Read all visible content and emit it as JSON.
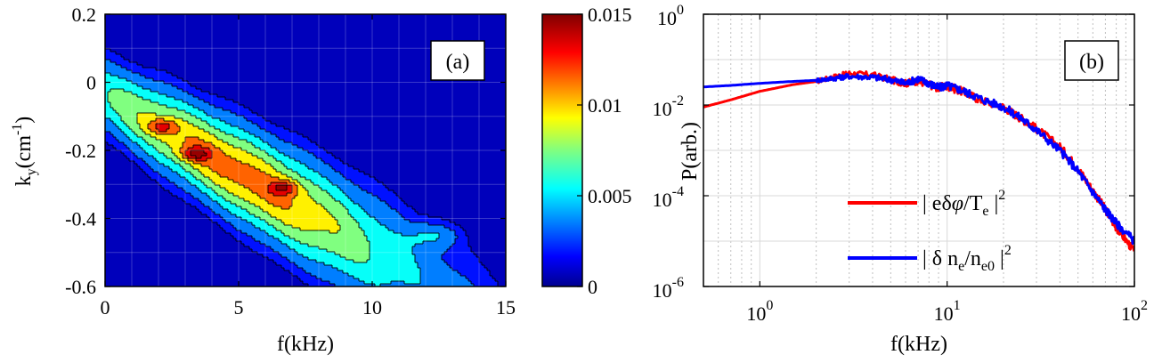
{
  "chart_data": [
    {
      "type": "heatmap",
      "panel_label": "(a)",
      "xlabel": "f(kHz)",
      "ylabel_main": "k",
      "ylabel_sub": "y",
      "ylabel_unit": "(cm",
      "ylabel_sup": "-1",
      "ylabel_close": ")",
      "xlim": [
        0,
        15
      ],
      "ylim": [
        -0.6,
        0.2
      ],
      "x_ticks": [
        0,
        5,
        10,
        15
      ],
      "y_ticks": [
        0.2,
        0,
        -0.2,
        -0.4,
        -0.6
      ],
      "x_tick_labels": [
        "0",
        "5",
        "10",
        "15"
      ],
      "y_tick_labels": [
        "0.2",
        "0",
        "-0.2",
        "-0.4",
        "-0.6"
      ],
      "colorbar": {
        "range": [
          0,
          0.015
        ],
        "ticks": [
          0,
          0.005,
          0.01,
          0.015
        ],
        "tick_labels": [
          "0",
          "0.005",
          "0.01",
          "0.015"
        ],
        "colormap": "jet"
      },
      "contour_levels": [
        0.0013,
        0.0025,
        0.0045,
        0.0065,
        0.0085,
        0.0105,
        0.0125,
        0.0142
      ],
      "ridge": {
        "description": "spectral power concentrated along line k_y ≈ -0.04 - 0.045 f",
        "peaks": [
          {
            "f": 2.1,
            "ky": -0.13,
            "value": 0.0145
          },
          {
            "f": 3.4,
            "ky": -0.21,
            "value": 0.0145
          },
          {
            "f": 6.7,
            "ky": -0.31,
            "value": 0.0145
          }
        ],
        "secondary_blob": {
          "f": 12.3,
          "ky": -0.45,
          "value": 0.0055
        }
      },
      "grid": true
    },
    {
      "type": "line",
      "panel_label": "(b)",
      "xlabel": "f(kHz)",
      "ylabel": "P(arb.)",
      "xscale": "log",
      "yscale": "log",
      "xlim": [
        0.5,
        100
      ],
      "ylim": [
        1e-06,
        1
      ],
      "x_ticks": [
        1,
        10,
        100
      ],
      "y_ticks": [
        1e-06,
        0.0001,
        0.01,
        1
      ],
      "x_tick_labels": [
        {
          "base": "10",
          "exp": "0"
        },
        {
          "base": "10",
          "exp": "1"
        },
        {
          "base": "10",
          "exp": "2"
        }
      ],
      "y_tick_labels": [
        {
          "base": "10",
          "exp": "-6"
        },
        {
          "base": "10",
          "exp": "-4"
        },
        {
          "base": "10",
          "exp": "-2"
        },
        {
          "base": "10",
          "exp": "0"
        }
      ],
      "grid": true,
      "legend_position": "bottom-right",
      "series": [
        {
          "name": "|eδφ/T_e|^2",
          "color": "#ff0000",
          "x": [
            0.5,
            0.7,
            1.0,
            1.5,
            2.0,
            2.5,
            3.0,
            4.0,
            5.0,
            6.0,
            7.0,
            8.0,
            9.0,
            10,
            12,
            15,
            20,
            25,
            30,
            40,
            50,
            60,
            70,
            80,
            100
          ],
          "y": [
            0.009,
            0.013,
            0.02,
            0.028,
            0.033,
            0.042,
            0.05,
            0.046,
            0.036,
            0.03,
            0.034,
            0.028,
            0.024,
            0.026,
            0.02,
            0.013,
            0.009,
            0.005,
            0.003,
            0.0012,
            0.0004,
            0.00013,
            5e-05,
            2e-05,
            6e-06
          ]
        },
        {
          "name": "|δn_e/n_e0|^2",
          "color": "#0000ff",
          "x": [
            0.5,
            0.7,
            1.0,
            1.5,
            2.0,
            2.5,
            3.0,
            4.0,
            5.0,
            6.0,
            7.0,
            8.0,
            9.0,
            10,
            12,
            15,
            20,
            25,
            30,
            40,
            50,
            60,
            70,
            80,
            100
          ],
          "y": [
            0.025,
            0.027,
            0.03,
            0.033,
            0.035,
            0.039,
            0.043,
            0.041,
            0.036,
            0.03,
            0.038,
            0.03,
            0.024,
            0.027,
            0.021,
            0.014,
            0.009,
            0.005,
            0.0028,
            0.001,
            0.00035,
            0.00012,
            5e-05,
            2.5e-05,
            1e-05
          ]
        }
      ],
      "legend": {
        "entries": [
          {
            "parts": [
              "| eδ",
              "φ",
              "/T",
              "e",
              " |",
              "2"
            ]
          },
          {
            "parts": [
              "| δ n",
              "e",
              "/n",
              "e0",
              " |",
              "2"
            ]
          }
        ]
      }
    }
  ]
}
